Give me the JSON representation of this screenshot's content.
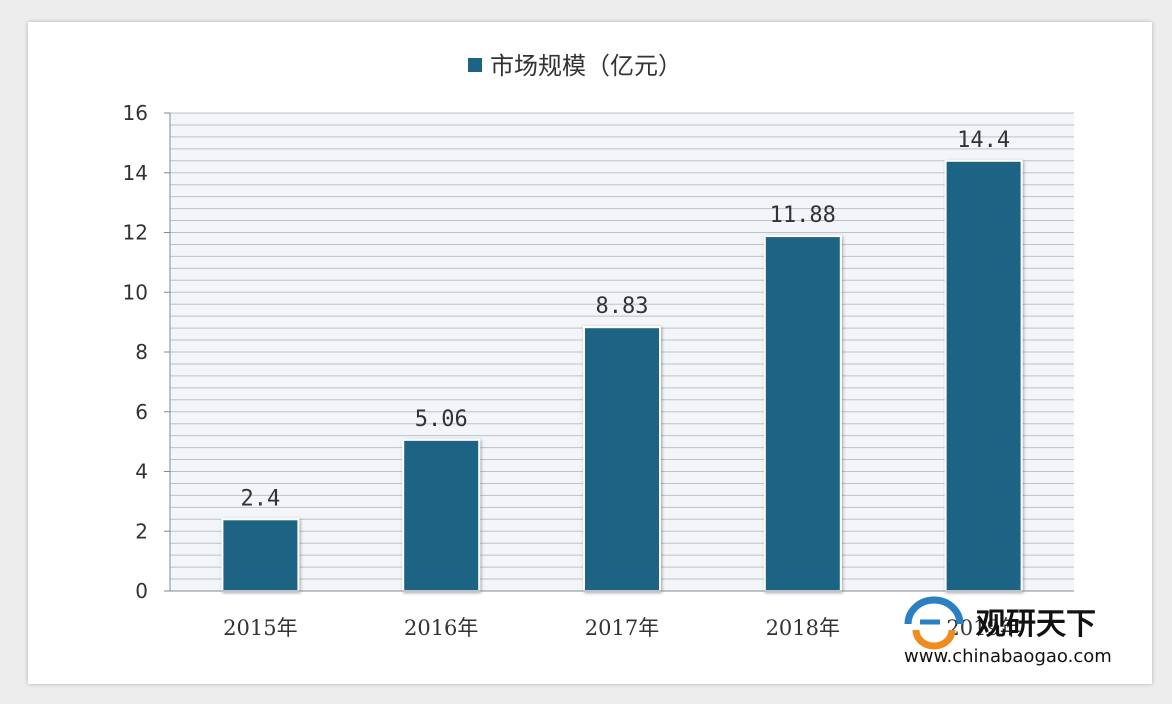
{
  "chart_data": {
    "type": "bar",
    "categories": [
      "2015年",
      "2016年",
      "2017年",
      "2018年",
      "2019年"
    ],
    "series": [
      {
        "name": "市场规模（亿元）",
        "values": [
          2.4,
          5.06,
          8.83,
          11.88,
          14.4
        ],
        "color": "#1c6384"
      }
    ],
    "data_labels": [
      "2.4",
      "5.06",
      "8.83",
      "11.88",
      "14.4"
    ],
    "ylim": [
      0,
      16
    ],
    "yticks": [
      0,
      2,
      4,
      6,
      8,
      10,
      12,
      14,
      16
    ],
    "grid": true,
    "legend_position": "top-center",
    "colors": {
      "bar": "#1c6384",
      "grid": "#b9c3cf",
      "plot_bg": "#f3f5f8"
    }
  },
  "watermark": {
    "brand": "观研天下",
    "url": "www.chinabaogao.com",
    "logo_icon": "chinabaogao-logo-icon"
  }
}
